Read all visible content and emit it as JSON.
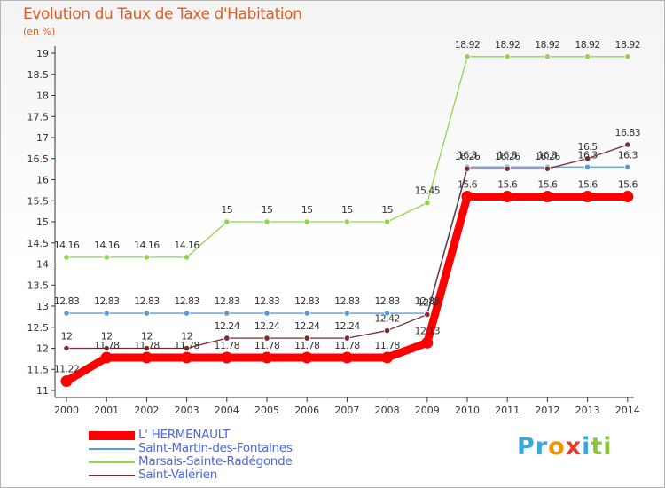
{
  "title": "Evolution du Taux de Taxe d'Habitation",
  "unit": "(en %)",
  "logo": {
    "letters": [
      {
        "ch": "P",
        "color": "#3fa6d8"
      },
      {
        "ch": "r",
        "color": "#3fa6d8"
      },
      {
        "ch": "o",
        "color": "#f29400"
      },
      {
        "ch": "x",
        "color": "#e43b2f"
      },
      {
        "ch": "i",
        "color": "#3fa6d8"
      },
      {
        "ch": "t",
        "color": "#8cc63f"
      },
      {
        "ch": "i",
        "color": "#8cc63f"
      }
    ]
  },
  "chart_data": {
    "type": "line",
    "x": [
      "2000",
      "2001",
      "2002",
      "2003",
      "2004",
      "2005",
      "2006",
      "2007",
      "2008",
      "2009",
      "2010",
      "2011",
      "2012",
      "2013",
      "2014"
    ],
    "ylim": [
      11,
      19
    ],
    "yticks": [
      "11",
      "11.5",
      "12",
      "12.5",
      "13",
      "13.5",
      "14",
      "14.5",
      "15",
      "15.5",
      "16",
      "16.5",
      "17",
      "17.5",
      "18",
      "18.5",
      "19"
    ],
    "grid": false,
    "legend": "bottom-left",
    "series": [
      {
        "name": "L' HERMENAULT",
        "color": "#ff0000",
        "values": [
          11.22,
          11.78,
          11.78,
          11.78,
          11.78,
          11.78,
          11.78,
          11.78,
          11.78,
          12.13,
          15.6,
          15.6,
          15.6,
          15.6,
          15.6
        ],
        "labels": [
          "11.22",
          "11.78",
          "11.78",
          "11.78",
          "11.78",
          "11.78",
          "11.78",
          "11.78",
          "11.78",
          "12.13",
          "15.6",
          "15.6",
          "15.6",
          "15.6",
          "15.6"
        ]
      },
      {
        "name": "Saint-Martin-des-Fontaines",
        "color": "#5b9bd5",
        "values": [
          12.83,
          12.83,
          12.83,
          12.83,
          12.83,
          12.83,
          12.83,
          12.83,
          12.83,
          12.83,
          16.3,
          16.3,
          16.3,
          16.3,
          16.3
        ],
        "labels": [
          "12.83",
          "12.83",
          "12.83",
          "12.83",
          "12.83",
          "12.83",
          "12.83",
          "12.83",
          "12.83",
          "12.83",
          "16.3",
          "16.3",
          "16.3",
          "16.3",
          "16.3"
        ]
      },
      {
        "name": "Marsais-Sainte-Radégonde",
        "color": "#8fd650",
        "values": [
          14.16,
          14.16,
          14.16,
          14.16,
          15,
          15,
          15,
          15,
          15,
          15.45,
          18.92,
          18.92,
          18.92,
          18.92,
          18.92
        ],
        "labels": [
          "14.16",
          "14.16",
          "14.16",
          "14.16",
          "15",
          "15",
          "15",
          "15",
          "15",
          "15.45",
          "18.92",
          "18.92",
          "18.92",
          "18.92",
          "18.92"
        ]
      },
      {
        "name": "Saint-Valérien",
        "color": "#7a2e33",
        "values": [
          12,
          12,
          12,
          12,
          12.24,
          12.24,
          12.24,
          12.24,
          12.42,
          12.8,
          16.26,
          16.26,
          16.26,
          16.5,
          16.83
        ],
        "labels": [
          "12",
          "12",
          "12",
          "12",
          "12.24",
          "12.24",
          "12.24",
          "12.24",
          "12.42",
          "12.8",
          "16.26",
          "16.26",
          "16.26",
          "16.5",
          "16.83"
        ]
      }
    ]
  }
}
